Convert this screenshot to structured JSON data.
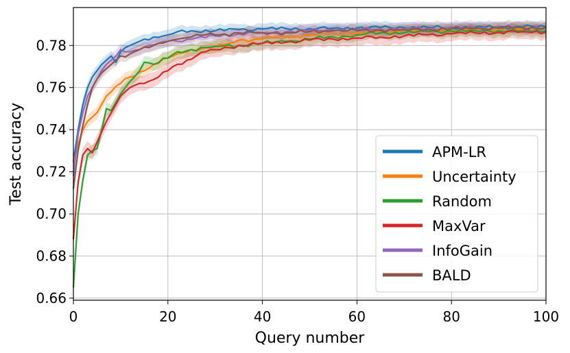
{
  "chart_data": {
    "type": "line",
    "xlabel": "Query number",
    "ylabel": "Test accuracy",
    "xlim": [
      0,
      100
    ],
    "ylim": [
      0.659,
      0.798
    ],
    "xticks": [
      0,
      20,
      40,
      60,
      80,
      100
    ],
    "xtick_labels": [
      "0",
      "20",
      "40",
      "60",
      "80",
      "100"
    ],
    "yticks": [
      0.66,
      0.68,
      0.7,
      0.72,
      0.74,
      0.76,
      0.78
    ],
    "ytick_labels": [
      "0.66",
      "0.68",
      "0.70",
      "0.72",
      "0.74",
      "0.76",
      "0.78"
    ],
    "grid": true,
    "legend_position": "lower-right",
    "series": [
      {
        "name": "APM-LR",
        "color": "#1f77b4",
        "band": 0.0025,
        "points": [
          [
            0,
            0.725
          ],
          [
            1,
            0.74
          ],
          [
            2,
            0.752
          ],
          [
            3,
            0.76
          ],
          [
            4,
            0.765
          ],
          [
            5,
            0.768
          ],
          [
            6,
            0.771
          ],
          [
            7,
            0.773
          ],
          [
            8,
            0.775
          ],
          [
            9,
            0.772
          ],
          [
            10,
            0.777
          ],
          [
            11,
            0.779
          ],
          [
            12,
            0.78
          ],
          [
            13,
            0.781
          ],
          [
            14,
            0.782
          ],
          [
            15,
            0.783
          ],
          [
            17,
            0.784
          ],
          [
            20,
            0.785
          ],
          [
            22,
            0.7865
          ],
          [
            25,
            0.787
          ],
          [
            30,
            0.787
          ],
          [
            35,
            0.7875
          ],
          [
            40,
            0.7878
          ],
          [
            45,
            0.788
          ],
          [
            50,
            0.788
          ],
          [
            55,
            0.7882
          ],
          [
            60,
            0.7883
          ],
          [
            65,
            0.7885
          ],
          [
            70,
            0.7885
          ],
          [
            75,
            0.7886
          ],
          [
            80,
            0.7886
          ],
          [
            85,
            0.7887
          ],
          [
            90,
            0.7887
          ],
          [
            95,
            0.7888
          ],
          [
            100,
            0.7888
          ]
        ]
      },
      {
        "name": "Uncertainty",
        "color": "#ff7f0e",
        "band": 0.003,
        "points": [
          [
            0,
            0.724
          ],
          [
            1,
            0.733
          ],
          [
            2,
            0.74
          ],
          [
            3,
            0.744
          ],
          [
            4,
            0.746
          ],
          [
            5,
            0.748
          ],
          [
            6,
            0.752
          ],
          [
            7,
            0.756
          ],
          [
            8,
            0.758
          ],
          [
            10,
            0.762
          ],
          [
            12,
            0.765
          ],
          [
            15,
            0.768
          ],
          [
            17,
            0.771
          ],
          [
            20,
            0.774
          ],
          [
            22,
            0.776
          ],
          [
            25,
            0.778
          ],
          [
            28,
            0.779
          ],
          [
            30,
            0.7795
          ],
          [
            33,
            0.781
          ],
          [
            35,
            0.7825
          ],
          [
            40,
            0.783
          ],
          [
            45,
            0.784
          ],
          [
            50,
            0.785
          ],
          [
            55,
            0.7855
          ],
          [
            60,
            0.786
          ],
          [
            65,
            0.7865
          ],
          [
            70,
            0.787
          ],
          [
            75,
            0.7872
          ],
          [
            80,
            0.7875
          ],
          [
            85,
            0.7876
          ],
          [
            90,
            0.7877
          ],
          [
            95,
            0.7878
          ],
          [
            100,
            0.788
          ]
        ]
      },
      {
        "name": "Random",
        "color": "#2ca02c",
        "band": 0.003,
        "points": [
          [
            0,
            0.665
          ],
          [
            1,
            0.7
          ],
          [
            2,
            0.716
          ],
          [
            3,
            0.728
          ],
          [
            4,
            0.73
          ],
          [
            5,
            0.731
          ],
          [
            6,
            0.74
          ],
          [
            7,
            0.75
          ],
          [
            8,
            0.749
          ],
          [
            9,
            0.753
          ],
          [
            10,
            0.757
          ],
          [
            11,
            0.76
          ],
          [
            12,
            0.763
          ],
          [
            14,
            0.768
          ],
          [
            15,
            0.772
          ],
          [
            17,
            0.771
          ],
          [
            20,
            0.774
          ],
          [
            22,
            0.777
          ],
          [
            25,
            0.778
          ],
          [
            28,
            0.779
          ],
          [
            30,
            0.7795
          ],
          [
            35,
            0.78
          ],
          [
            40,
            0.781
          ],
          [
            45,
            0.782
          ],
          [
            50,
            0.783
          ],
          [
            55,
            0.784
          ],
          [
            60,
            0.785
          ],
          [
            65,
            0.786
          ],
          [
            70,
            0.786
          ],
          [
            75,
            0.7865
          ],
          [
            80,
            0.7868
          ],
          [
            85,
            0.787
          ],
          [
            90,
            0.787
          ],
          [
            95,
            0.787
          ],
          [
            100,
            0.7868
          ]
        ]
      },
      {
        "name": "MaxVar",
        "color": "#d62728",
        "band": 0.0035,
        "points": [
          [
            0,
            0.688
          ],
          [
            1,
            0.715
          ],
          [
            2,
            0.728
          ],
          [
            3,
            0.731
          ],
          [
            4,
            0.729
          ],
          [
            5,
            0.734
          ],
          [
            6,
            0.739
          ],
          [
            7,
            0.744
          ],
          [
            8,
            0.748
          ],
          [
            9,
            0.752
          ],
          [
            10,
            0.756
          ],
          [
            12,
            0.76
          ],
          [
            14,
            0.762
          ],
          [
            16,
            0.763
          ],
          [
            18,
            0.765
          ],
          [
            20,
            0.768
          ],
          [
            22,
            0.771
          ],
          [
            24,
            0.773
          ],
          [
            26,
            0.775
          ],
          [
            28,
            0.777
          ],
          [
            30,
            0.778
          ],
          [
            33,
            0.779
          ],
          [
            35,
            0.78
          ],
          [
            40,
            0.781
          ],
          [
            45,
            0.7815
          ],
          [
            50,
            0.7825
          ],
          [
            55,
            0.783
          ],
          [
            60,
            0.7835
          ],
          [
            65,
            0.784
          ],
          [
            70,
            0.7845
          ],
          [
            75,
            0.785
          ],
          [
            80,
            0.7855
          ],
          [
            85,
            0.786
          ],
          [
            90,
            0.7862
          ],
          [
            95,
            0.7865
          ],
          [
            100,
            0.7865
          ]
        ]
      },
      {
        "name": "InfoGain",
        "color": "#9467bd",
        "band": 0.003,
        "points": [
          [
            0,
            0.718
          ],
          [
            1,
            0.738
          ],
          [
            2,
            0.748
          ],
          [
            3,
            0.756
          ],
          [
            4,
            0.76
          ],
          [
            5,
            0.764
          ],
          [
            6,
            0.768
          ],
          [
            7,
            0.771
          ],
          [
            8,
            0.773
          ],
          [
            9,
            0.775
          ],
          [
            10,
            0.778
          ],
          [
            12,
            0.777
          ],
          [
            14,
            0.778
          ],
          [
            16,
            0.78
          ],
          [
            18,
            0.781
          ],
          [
            20,
            0.782
          ],
          [
            22,
            0.782
          ],
          [
            25,
            0.783
          ],
          [
            30,
            0.7845
          ],
          [
            35,
            0.7855
          ],
          [
            40,
            0.786
          ],
          [
            45,
            0.7865
          ],
          [
            50,
            0.787
          ],
          [
            55,
            0.7873
          ],
          [
            60,
            0.7876
          ],
          [
            65,
            0.7878
          ],
          [
            70,
            0.788
          ],
          [
            75,
            0.788
          ],
          [
            80,
            0.7882
          ],
          [
            85,
            0.7883
          ],
          [
            90,
            0.7884
          ],
          [
            95,
            0.7885
          ],
          [
            100,
            0.7886
          ]
        ]
      },
      {
        "name": "BALD",
        "color": "#8c564b",
        "band": 0.0025,
        "points": [
          [
            0,
            0.712
          ],
          [
            1,
            0.73
          ],
          [
            2,
            0.742
          ],
          [
            3,
            0.752
          ],
          [
            4,
            0.76
          ],
          [
            5,
            0.764
          ],
          [
            6,
            0.767
          ],
          [
            7,
            0.769
          ],
          [
            8,
            0.771
          ],
          [
            9,
            0.773
          ],
          [
            10,
            0.775
          ],
          [
            12,
            0.776
          ],
          [
            14,
            0.778
          ],
          [
            16,
            0.779
          ],
          [
            18,
            0.781
          ],
          [
            20,
            0.782
          ],
          [
            22,
            0.783
          ],
          [
            25,
            0.784
          ],
          [
            28,
            0.785
          ],
          [
            30,
            0.785
          ],
          [
            35,
            0.786
          ],
          [
            40,
            0.786
          ],
          [
            45,
            0.786
          ],
          [
            50,
            0.7865
          ],
          [
            55,
            0.787
          ],
          [
            60,
            0.787
          ],
          [
            65,
            0.7872
          ],
          [
            70,
            0.7874
          ],
          [
            75,
            0.7876
          ],
          [
            80,
            0.7878
          ],
          [
            85,
            0.788
          ],
          [
            90,
            0.7882
          ],
          [
            95,
            0.7884
          ],
          [
            100,
            0.7885
          ]
        ]
      }
    ]
  }
}
